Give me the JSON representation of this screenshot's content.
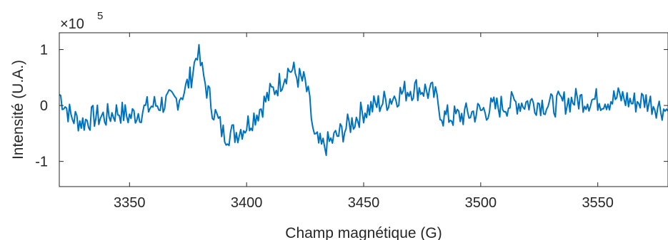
{
  "chart_data": {
    "type": "line",
    "title": "",
    "xlabel": "Champ magnétique (G)",
    "ylabel": "Intensité (U.A.)",
    "y_exponent_label": {
      "base": "×10",
      "power": "5"
    },
    "xlim": [
      3320,
      3580
    ],
    "ylim": [
      -1.45,
      1.3
    ],
    "xticks": [
      3350,
      3400,
      3450,
      3500,
      3550
    ],
    "xtick_labels": [
      "3350",
      "3400",
      "3450",
      "3500",
      "3550"
    ],
    "yticks": [
      -1,
      0,
      1
    ],
    "ytick_labels": [
      "-1",
      "0",
      "1"
    ],
    "grid": false,
    "line_color": "#0072BD",
    "series": [
      {
        "x": [
          3320,
          3325,
          3330,
          3335,
          3340,
          3345,
          3350,
          3355,
          3360,
          3365,
          3370,
          3374,
          3377,
          3379,
          3381,
          3383,
          3386,
          3390,
          3395,
          3400,
          3405,
          3410,
          3414,
          3417,
          3419,
          3422,
          3425,
          3427,
          3429,
          3432,
          3436,
          3440,
          3445,
          3450,
          3455,
          3460,
          3465,
          3470,
          3475,
          3480,
          3484,
          3490,
          3495,
          3500,
          3505,
          3510,
          3515,
          3520,
          3525,
          3530,
          3535,
          3540,
          3545,
          3550,
          3555,
          3560,
          3565,
          3570,
          3575,
          3580
        ],
        "y": [
          0.2,
          -0.2,
          -0.3,
          -0.2,
          -0.2,
          -0.1,
          -0.2,
          -0.1,
          0.0,
          0.05,
          0.1,
          0.3,
          0.6,
          1.0,
          0.6,
          0.3,
          -0.1,
          -0.5,
          -0.5,
          -0.35,
          -0.1,
          0.2,
          0.4,
          0.6,
          0.65,
          0.5,
          0.4,
          0.0,
          -0.6,
          -0.75,
          -0.65,
          -0.5,
          -0.3,
          -0.1,
          0.0,
          0.1,
          0.2,
          0.3,
          0.3,
          0.2,
          -0.2,
          -0.2,
          -0.15,
          -0.1,
          -0.05,
          0.0,
          0.05,
          0.05,
          0.05,
          0.0,
          0.05,
          0.1,
          0.1,
          0.1,
          0.1,
          0.15,
          0.05,
          0.1,
          0.0,
          -0.1
        ]
      }
    ]
  }
}
